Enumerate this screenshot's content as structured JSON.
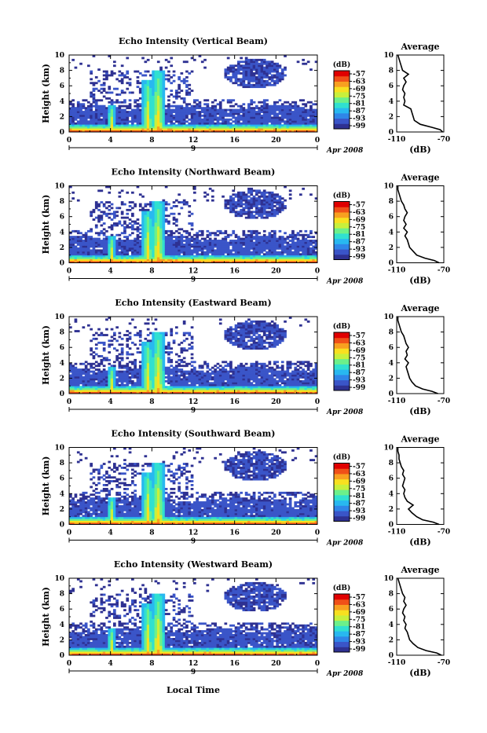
{
  "figure": {
    "xlabel": "Local Time",
    "date_label": "Apr 2008",
    "day_label": "9",
    "colorbar_unit": "(dB)",
    "avg_title": "Average",
    "avg_xlabel": "(dB)",
    "ylabel": "Height (km)"
  },
  "colorbar": {
    "ticks": [
      "-57",
      "-63",
      "-69",
      "-75",
      "-81",
      "-87",
      "-93",
      "-99"
    ],
    "colors": [
      "#2e3192",
      "#3a55c8",
      "#2f86e8",
      "#28b8f0",
      "#30e0d0",
      "#6cf08a",
      "#c8f03c",
      "#f8e020",
      "#f8a020",
      "#f05018",
      "#e00000"
    ]
  },
  "chart_data": [
    {
      "type": "heatmap",
      "title": "Echo Intensity (Vertical Beam)",
      "ylabel": "Height (km)",
      "x_ticks": [
        "0",
        "4",
        "8",
        "12",
        "16",
        "20",
        "0"
      ],
      "y_ticks": [
        "0",
        "2",
        "4",
        "6",
        "8",
        "10"
      ],
      "xlim": [
        0,
        24
      ],
      "ylim": [
        0,
        10
      ],
      "color_scale_dB": [
        -99,
        -57
      ],
      "average_profile": {
        "title": "Average",
        "xlabel": "(dB)",
        "x_ticks": [
          "-110",
          "-70"
        ],
        "xlim": [
          -110,
          -70
        ],
        "height_km": [
          0,
          0.3,
          0.6,
          1.0,
          1.5,
          2.0,
          2.5,
          3.0,
          3.5,
          4.0,
          4.5,
          5.0,
          5.5,
          6.0,
          6.5,
          7.0,
          7.5,
          8.0,
          8.5,
          9.0,
          9.5,
          10.0
        ],
        "values_dB": [
          -71,
          -73,
          -80,
          -90,
          -95,
          -96,
          -97,
          -98,
          -104,
          -103,
          -104,
          -103,
          -105,
          -104,
          -102,
          -104,
          -100,
          -105,
          -106,
          -107,
          -108,
          -109
        ]
      }
    },
    {
      "type": "heatmap",
      "title": "Echo Intensity (Northward Beam)",
      "ylabel": "Height (km)",
      "x_ticks": [
        "0",
        "4",
        "8",
        "12",
        "16",
        "20",
        "0"
      ],
      "y_ticks": [
        "0",
        "2",
        "4",
        "6",
        "8",
        "10"
      ],
      "xlim": [
        0,
        24
      ],
      "ylim": [
        0,
        10
      ],
      "color_scale_dB": [
        -99,
        -57
      ],
      "average_profile": {
        "title": "Average",
        "xlabel": "(dB)",
        "x_ticks": [
          "-110",
          "-70"
        ],
        "xlim": [
          -110,
          -70
        ],
        "height_km": [
          0,
          0.3,
          0.6,
          1.0,
          1.5,
          2.0,
          2.5,
          3.0,
          3.5,
          4.0,
          4.5,
          5.0,
          5.5,
          6.0,
          6.5,
          7.0,
          7.5,
          8.0,
          8.5,
          9.0,
          9.5,
          10.0
        ],
        "values_dB": [
          -74,
          -78,
          -86,
          -93,
          -96,
          -99,
          -100,
          -101,
          -103,
          -101,
          -104,
          -102,
          -104,
          -103,
          -101,
          -103,
          -104,
          -106,
          -107,
          -108,
          -109,
          -109
        ]
      }
    },
    {
      "type": "heatmap",
      "title": "Echo Intensity (Eastward Beam)",
      "ylabel": "Height (km)",
      "x_ticks": [
        "0",
        "4",
        "8",
        "12",
        "16",
        "20",
        "0"
      ],
      "y_ticks": [
        "0",
        "2",
        "4",
        "6",
        "8",
        "10"
      ],
      "xlim": [
        0,
        24
      ],
      "ylim": [
        0,
        10
      ],
      "color_scale_dB": [
        -99,
        -57
      ],
      "average_profile": {
        "title": "Average",
        "xlabel": "(dB)",
        "x_ticks": [
          "-110",
          "-70"
        ],
        "xlim": [
          -110,
          -70
        ],
        "height_km": [
          0,
          0.3,
          0.6,
          1.0,
          1.5,
          2.0,
          2.5,
          3.0,
          3.5,
          4.0,
          4.5,
          5.0,
          5.5,
          6.0,
          6.5,
          7.0,
          7.5,
          8.0,
          8.5,
          9.0,
          9.5,
          10.0
        ],
        "values_dB": [
          -75,
          -80,
          -88,
          -94,
          -97,
          -99,
          -100,
          -101,
          -102,
          -100,
          -103,
          -101,
          -102,
          -100,
          -102,
          -103,
          -104,
          -106,
          -107,
          -108,
          -109,
          -109
        ]
      }
    },
    {
      "type": "heatmap",
      "title": "Echo Intensity (Southward Beam)",
      "ylabel": "Height (km)",
      "x_ticks": [
        "0",
        "4",
        "8",
        "12",
        "16",
        "20",
        "0"
      ],
      "y_ticks": [
        "0",
        "2",
        "4",
        "6",
        "8",
        "10"
      ],
      "xlim": [
        0,
        24
      ],
      "ylim": [
        0,
        10
      ],
      "color_scale_dB": [
        -99,
        -57
      ],
      "average_profile": {
        "title": "Average",
        "xlabel": "(dB)",
        "x_ticks": [
          "-110",
          "-70"
        ],
        "xlim": [
          -110,
          -70
        ],
        "height_km": [
          0,
          0.3,
          0.6,
          1.0,
          1.5,
          2.0,
          2.5,
          3.0,
          3.5,
          4.0,
          4.5,
          5.0,
          5.5,
          6.0,
          6.5,
          7.0,
          7.5,
          8.0,
          8.5,
          9.0,
          9.5,
          10.0
        ],
        "values_dB": [
          -74,
          -79,
          -88,
          -93,
          -97,
          -100,
          -96,
          -101,
          -103,
          -104,
          -103,
          -105,
          -104,
          -103,
          -105,
          -104,
          -106,
          -107,
          -108,
          -108,
          -109,
          -109
        ]
      }
    },
    {
      "type": "heatmap",
      "title": "Echo Intensity (Westward Beam)",
      "ylabel": "Height (km)",
      "x_ticks": [
        "0",
        "4",
        "8",
        "12",
        "16",
        "20",
        "0"
      ],
      "y_ticks": [
        "0",
        "2",
        "4",
        "6",
        "8",
        "10"
      ],
      "xlim": [
        0,
        24
      ],
      "ylim": [
        0,
        10
      ],
      "color_scale_dB": [
        -99,
        -57
      ],
      "average_profile": {
        "title": "Average",
        "xlabel": "(dB)",
        "x_ticks": [
          "-110",
          "-70"
        ],
        "xlim": [
          -110,
          -70
        ],
        "height_km": [
          0,
          0.3,
          0.6,
          1.0,
          1.5,
          2.0,
          2.5,
          3.0,
          3.5,
          4.0,
          4.5,
          5.0,
          5.5,
          6.0,
          6.5,
          7.0,
          7.5,
          8.0,
          8.5,
          9.0,
          9.5,
          10.0
        ],
        "values_dB": [
          -72,
          -76,
          -85,
          -92,
          -96,
          -99,
          -100,
          -101,
          -103,
          -102,
          -104,
          -103,
          -105,
          -104,
          -102,
          -104,
          -103,
          -105,
          -106,
          -107,
          -108,
          -109
        ]
      }
    }
  ]
}
